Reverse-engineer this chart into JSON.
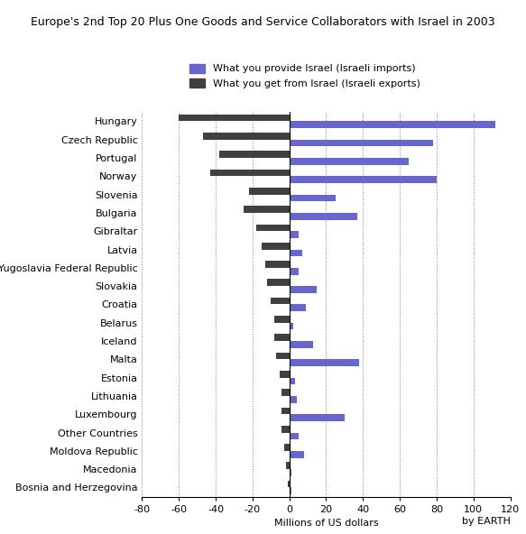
{
  "title": "Europe's 2nd Top 20 Plus One Goods and Service Collaborators with Israel in 2003",
  "xlabel": "Millions of US dollars",
  "legend_imports": "What you provide Israel (Israeli imports)",
  "legend_exports": "What you get from Israel (Israeli exports)",
  "watermark": "by EARTH",
  "countries": [
    "Hungary",
    "Czech Republic",
    "Portugal",
    "Norway",
    "Slovenia",
    "Bulgaria",
    "Gibraltar",
    "Latvia",
    "Yugoslavia Federal Republic",
    "Slovakia",
    "Croatia",
    "Belarus",
    "Iceland",
    "Malta",
    "Estonia",
    "Lithuania",
    "Luxembourg",
    "Other Countries",
    "Moldova Republic",
    "Macedonia",
    "Bosnia and Herzegovina"
  ],
  "imports": [
    112,
    78,
    65,
    80,
    25,
    37,
    5,
    7,
    5,
    15,
    9,
    2,
    13,
    38,
    3,
    4,
    30,
    5,
    8,
    1,
    1
  ],
  "exports": [
    -60,
    -47,
    -38,
    -43,
    -22,
    -25,
    -18,
    -15,
    -13,
    -12,
    -10,
    -8,
    -8,
    -7,
    -5,
    -4,
    -4,
    -4,
    -3,
    -2,
    -1
  ],
  "imports_color": "#6666cc",
  "exports_color": "#404040",
  "background_color": "#ffffff",
  "xlim": [
    -80,
    120
  ],
  "xticks": [
    -80,
    -60,
    -40,
    -20,
    0,
    20,
    40,
    60,
    80,
    100,
    120
  ],
  "bar_height": 0.38,
  "title_fontsize": 9.0,
  "label_fontsize": 8,
  "tick_fontsize": 8
}
